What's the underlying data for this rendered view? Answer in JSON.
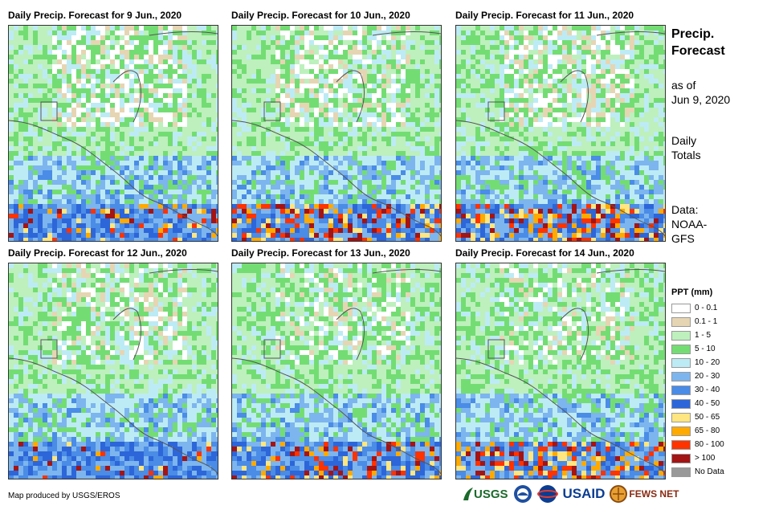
{
  "panels": [
    {
      "title": "Daily Precip. Forecast for 9 Jun., 2020",
      "heavy": 0.18,
      "dry": 0.45,
      "seed": 3
    },
    {
      "title": "Daily Precip. Forecast for 10 Jun., 2020",
      "heavy": 0.35,
      "dry": 0.35,
      "seed": 7
    },
    {
      "title": "Daily Precip. Forecast for 11 Jun., 2020",
      "heavy": 0.4,
      "dry": 0.38,
      "seed": 11
    },
    {
      "title": "Daily Precip. Forecast for 12 Jun., 2020",
      "heavy": 0.08,
      "dry": 0.3,
      "seed": 17
    },
    {
      "title": "Daily Precip. Forecast for 13 Jun., 2020",
      "heavy": 0.3,
      "dry": 0.28,
      "seed": 23
    },
    {
      "title": "Daily Precip. Forecast for 14 Jun., 2020",
      "heavy": 0.38,
      "dry": 0.25,
      "seed": 29
    }
  ],
  "side": {
    "title_line1": "Precip.",
    "title_line2": "Forecast",
    "asof_line1": "as of",
    "asof_line2": "Jun 9, 2020",
    "daily_line1": "Daily",
    "daily_line2": "Totals",
    "data_line1": "Data:",
    "data_line2": "NOAA-",
    "data_line3": "GFS"
  },
  "legend": {
    "title": "PPT (mm)",
    "items": [
      {
        "label": "0 - 0.1",
        "color": "#ffffff"
      },
      {
        "label": "0.1 - 1",
        "color": "#e6d5b3"
      },
      {
        "label": "1 - 5",
        "color": "#bdf0bd"
      },
      {
        "label": "5 - 10",
        "color": "#73dd73"
      },
      {
        "label": "10 - 20",
        "color": "#bdebf5"
      },
      {
        "label": "20 - 30",
        "color": "#7db5ee"
      },
      {
        "label": "30 - 40",
        "color": "#4a8ce6"
      },
      {
        "label": "40 - 50",
        "color": "#2d66d9"
      },
      {
        "label": "50 - 65",
        "color": "#ffe680"
      },
      {
        "label": "65 - 80",
        "color": "#ffaa00"
      },
      {
        "label": "80 - 100",
        "color": "#ff3300"
      },
      {
        "label": "> 100",
        "color": "#a31414"
      },
      {
        "label": "No Data",
        "color": "#999999"
      }
    ]
  },
  "credit": "Map produced by USGS/EROS",
  "logos": {
    "usgs": "USGS",
    "usaid": "USAID",
    "fewsnet": "FEWS NET"
  }
}
